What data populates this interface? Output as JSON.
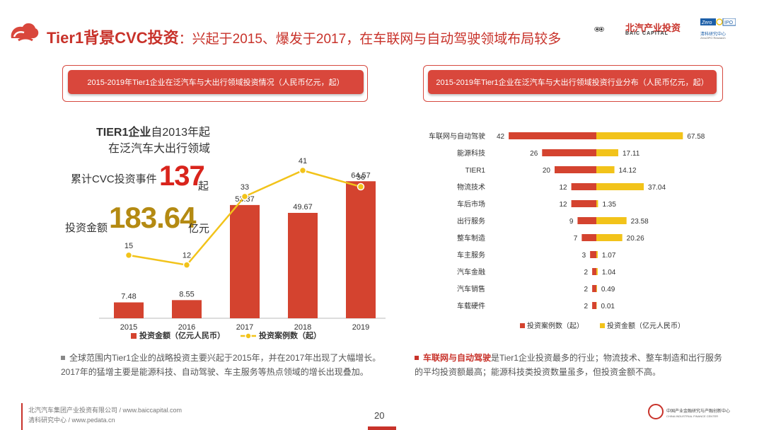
{
  "header": {
    "title_main": "Tier1背景CVC投资",
    "title_colon": "：",
    "title_sub": "兴起于2015、爆发于2017，在车联网与自动驾驶领域布局较多",
    "brand_name": "北汽产业投资",
    "brand_en": "BAIC CAPITAL",
    "zero_name": "清科研究中心",
    "zero_en": "Zero2IPO Research"
  },
  "left_panel": {
    "section_title": "2015-2019年Tier1企业在泛汽车与大出行领域投资情况（人民币亿元，起）",
    "headline_1_bold": "TIER1企业",
    "headline_1_rest": "自2013年起",
    "headline_2": "在泛汽车大出行领域",
    "events_label": "累计CVC投资事件",
    "events_value": "137",
    "events_unit": "起",
    "amount_label": "投资金额",
    "amount_value": "183.64",
    "amount_unit": "亿元",
    "note": "全球范围内Tier1企业的战略投资主要兴起于2015年，并在2017年出现了大幅增长。2017年的猛增主要是能源科技、自动驾驶、车主服务等热点领域的增长出现叠加。"
  },
  "right_panel": {
    "section_title": "2015-2019年Tier1企业在泛汽车与大出行领域投资行业分布（人民币亿元，起）",
    "note_em": "车联网与自动驾驶",
    "note_rest_1": "是Tier1企业投资最多的行业；物流技术、整车制造和出行服务",
    "note_rest_2": "的平均投资额最高；能源科技类投资数量虽多，但投资金额不高。"
  },
  "footer": {
    "company": "北汽汽车集团产业投资有限公司 / www.baiccapital.com",
    "research": "清科研究中心 / www.pedata.cn",
    "page": "20",
    "logo_text": "中国产业金融研究与产融创新中心",
    "logo_en": "CHINA INDUSTRIAL FINANCE CENTER"
  },
  "colors": {
    "accent_red": "#c8322a",
    "bar_red": "#d4432f",
    "line_yellow": "#f2c31a",
    "gold_text": "#b48a12"
  },
  "chart_data": [
    {
      "type": "bar",
      "categories": [
        "2015",
        "2016",
        "2017",
        "2018",
        "2019"
      ],
      "series": [
        {
          "name": "投资金额（亿元人民币）",
          "type": "bar",
          "values": [
            7.48,
            8.55,
            53.37,
            49.67,
            64.57
          ],
          "color": "#d4432f"
        },
        {
          "name": "投资案例数（起）",
          "type": "line",
          "values": [
            15,
            12,
            33,
            41,
            36
          ],
          "color": "#f2c31a"
        }
      ],
      "grid": false,
      "legend": "bottom"
    },
    {
      "type": "bar",
      "orientation": "horizontal-butterfly",
      "categories": [
        "车联网与自动驾驶",
        "能源科技",
        "TIER1",
        "物流技术",
        "车后市场",
        "出行服务",
        "整车制造",
        "车主服务",
        "汽车金融",
        "汽车销售",
        "车载硬件"
      ],
      "series": [
        {
          "name": "投资案例数（起）",
          "values": [
            42,
            26,
            20,
            12,
            12,
            9,
            7,
            3,
            2,
            2,
            2
          ],
          "color": "#d4432f"
        },
        {
          "name": "投资金额（亿元人民币）",
          "values": [
            67.58,
            17.11,
            14.12,
            37.04,
            1.35,
            23.58,
            20.26,
            1.07,
            1.04,
            0.49,
            0.01
          ],
          "color": "#f2c31a"
        }
      ],
      "grid": false,
      "legend": "bottom"
    }
  ]
}
